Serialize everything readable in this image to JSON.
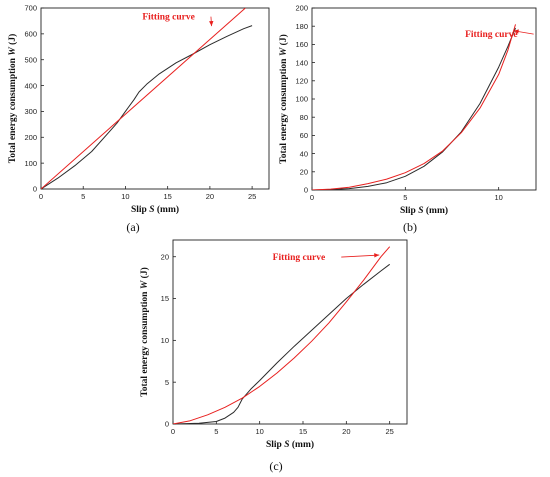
{
  "colors": {
    "measured": "#2b2b2b",
    "fitting": "#e8201f",
    "axis": "#222222"
  },
  "chart_data": [
    {
      "id": "a",
      "type": "line",
      "caption": "(a)",
      "xlabel": "Slip",
      "xlabel_italic": "S",
      "xlabel_unit": " (mm)",
      "ylabel": "Total energy consumption",
      "ylabel_italic": "W",
      "ylabel_unit": " (J)",
      "xlim": [
        0,
        27
      ],
      "ylim": [
        0,
        700
      ],
      "xticks": [
        0,
        5,
        10,
        15,
        20,
        25
      ],
      "yticks": [
        0,
        100,
        200,
        300,
        400,
        500,
        600,
        700
      ],
      "grid": false,
      "annotation": {
        "text": "Fitting curve",
        "text_at": [
          12.0,
          655
        ],
        "arrow_to": [
          20.2,
          630
        ]
      },
      "series": [
        {
          "role": "measured",
          "x": [
            0,
            2,
            4,
            6,
            8,
            9,
            10,
            11,
            11.6,
            12.5,
            14,
            16,
            18,
            20,
            22,
            24,
            25
          ],
          "y": [
            0,
            42,
            90,
            145,
            218,
            255,
            300,
            345,
            375,
            405,
            445,
            488,
            522,
            558,
            590,
            620,
            632
          ]
        },
        {
          "role": "fitting",
          "x": [
            0,
            24.2
          ],
          "y": [
            0,
            700
          ]
        }
      ]
    },
    {
      "id": "b",
      "type": "line",
      "caption": "(b)",
      "xlabel": "Slip",
      "xlabel_italic": "S",
      "xlabel_unit": " (mm)",
      "ylabel": "Total energy consumption",
      "ylabel_italic": "W",
      "ylabel_unit": " (J)",
      "xlim": [
        0,
        12
      ],
      "ylim": [
        0,
        200
      ],
      "xticks": [
        0,
        5,
        10
      ],
      "yticks": [
        0,
        20,
        40,
        60,
        80,
        100,
        120,
        140,
        160,
        180,
        200
      ],
      "grid": false,
      "annotation": {
        "text": "Fitting curve",
        "text_at": [
          8.2,
          168
        ],
        "arrow_to": [
          10.8,
          175
        ]
      },
      "series": [
        {
          "role": "measured",
          "x": [
            0,
            1,
            2,
            3,
            4,
            5,
            6,
            7,
            8,
            9,
            10,
            10.5,
            10.9
          ],
          "y": [
            0,
            0.5,
            1.5,
            4,
            8,
            15,
            26,
            42,
            64,
            95,
            135,
            158,
            178
          ]
        },
        {
          "role": "fitting",
          "x": [
            0,
            1,
            2,
            3,
            4,
            5,
            6,
            7,
            8,
            9,
            10,
            10.5,
            10.9
          ],
          "y": [
            0,
            1,
            3,
            7,
            12,
            19,
            29,
            43,
            63,
            90,
            127,
            154,
            182
          ]
        }
      ]
    },
    {
      "id": "c",
      "type": "line",
      "caption": "(c)",
      "xlabel": "Slip",
      "xlabel_italic": "S",
      "xlabel_unit": " (mm)",
      "ylabel": "Total energy consumption",
      "ylabel_italic": "W",
      "ylabel_unit": " (J)",
      "xlim": [
        0,
        27
      ],
      "ylim": [
        0,
        22
      ],
      "xticks": [
        0,
        5,
        10,
        15,
        20,
        25
      ],
      "yticks": [
        0,
        5,
        10,
        15,
        20
      ],
      "grid": false,
      "annotation": {
        "text": "Fitting curve",
        "text_at": [
          11.5,
          19.6
        ],
        "arrow_to": [
          23.8,
          20.2
        ]
      },
      "series": [
        {
          "role": "measured",
          "x": [
            0,
            3,
            5,
            6,
            7,
            7.5,
            8,
            9,
            10,
            12,
            14,
            16,
            18,
            20,
            22,
            24,
            25
          ],
          "y": [
            0,
            0.1,
            0.3,
            0.7,
            1.4,
            2,
            3,
            4.2,
            5.2,
            7.3,
            9.3,
            11.2,
            13.1,
            15,
            16.7,
            18.3,
            19.1
          ]
        },
        {
          "role": "fitting",
          "x": [
            0,
            2,
            4,
            6,
            8,
            10,
            12,
            14,
            16,
            18,
            20,
            22,
            24,
            25
          ],
          "y": [
            0,
            0.4,
            1.1,
            2,
            3.1,
            4.5,
            6.1,
            7.9,
            9.9,
            12.1,
            14.6,
            17.2,
            20,
            21.2
          ]
        }
      ]
    }
  ]
}
